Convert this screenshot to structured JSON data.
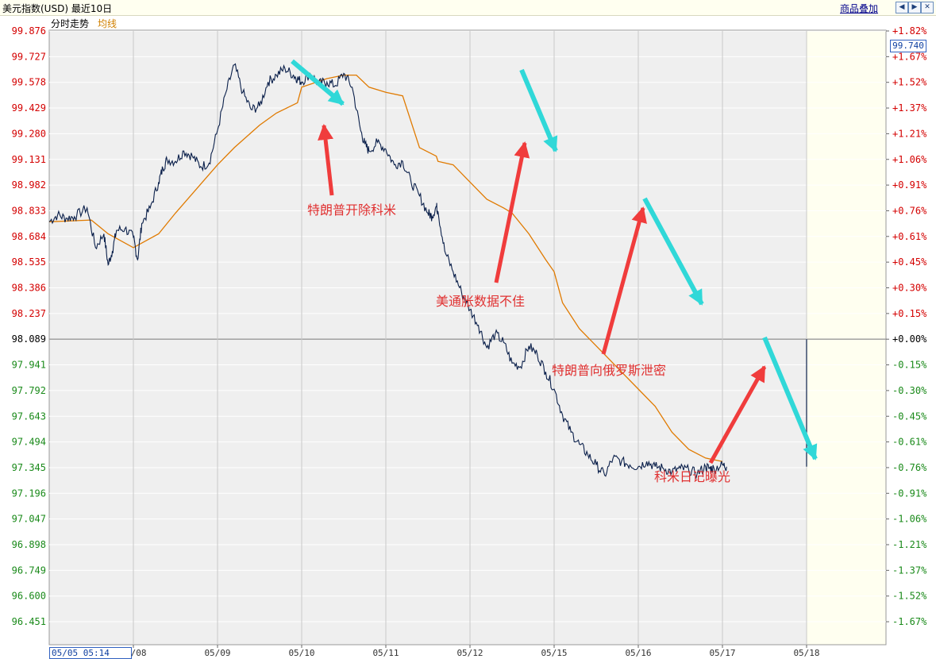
{
  "header": {
    "title": "美元指数(USD) 最近10日",
    "overlay_link": "商品叠加",
    "nav_icons": [
      "arrow-left-icon",
      "arrow-right-icon",
      "close-icon"
    ]
  },
  "tabs": {
    "line": "分时走势",
    "avg": "均线"
  },
  "current_price_label": "99.740",
  "start_label": "05/05 05:14",
  "colors": {
    "price_line": "#0a1f4a",
    "avg_line": "#e07a00",
    "annotation_text": "#e03030",
    "arrow_red": "#f03c3c",
    "arrow_cyan": "#30d8d8",
    "up_red": "#d40000",
    "down_green": "#1a8a1a",
    "plot_bg": "#efefef",
    "future_bg": "#fffff0"
  },
  "chart_data": {
    "type": "line",
    "title": "美元指数(USD) 最近10日",
    "base_value": 98.089,
    "y_ticks": [
      "99.876",
      "99.727",
      "99.578",
      "99.429",
      "99.280",
      "99.131",
      "98.982",
      "98.833",
      "98.684",
      "98.535",
      "98.386",
      "98.237",
      "98.089",
      "97.941",
      "97.792",
      "97.643",
      "97.494",
      "97.345",
      "97.196",
      "97.047",
      "96.898",
      "96.749",
      "96.600",
      "96.451"
    ],
    "pct_ticks": [
      "+1.82%",
      "+1.67%",
      "+1.52%",
      "+1.37%",
      "+1.21%",
      "+1.06%",
      "+0.91%",
      "+0.76%",
      "+0.61%",
      "+0.45%",
      "+0.30%",
      "+0.15%",
      "+0.00%",
      "-0.15%",
      "-0.30%",
      "-0.45%",
      "-0.61%",
      "-0.76%",
      "-0.91%",
      "-1.06%",
      "-1.21%",
      "-1.37%",
      "-1.52%",
      "-1.67%"
    ],
    "dates": [
      "05/08",
      "05/09",
      "05/10",
      "05/11",
      "05/12",
      "05/15",
      "05/16",
      "05/17",
      "05/18"
    ],
    "ylim": [
      96.38,
      99.95
    ],
    "x_range": [
      0,
      9
    ],
    "series": [
      {
        "name": "分时走势",
        "x": [
          0.0,
          0.1,
          0.2,
          0.3,
          0.45,
          0.55,
          0.65,
          0.7,
          0.75,
          0.8,
          0.9,
          1.0,
          1.05,
          1.1,
          1.2,
          1.3,
          1.35,
          1.4,
          1.5,
          1.6,
          1.7,
          1.8,
          1.9,
          2.0,
          2.1,
          2.2,
          2.3,
          2.4,
          2.5,
          2.6,
          2.7,
          2.8,
          2.9,
          2.95,
          3.0,
          3.1,
          3.2,
          3.3,
          3.4,
          3.5,
          3.6,
          3.7,
          3.75,
          3.8,
          3.9,
          4.0,
          4.1,
          4.2,
          4.3,
          4.4,
          4.5,
          4.55,
          4.6,
          4.62,
          4.7,
          4.8,
          4.9,
          5.0,
          5.1,
          5.2,
          5.3,
          5.4,
          5.5,
          5.6,
          5.7,
          5.8,
          5.9,
          6.0,
          6.1,
          6.2,
          6.3,
          6.4,
          6.5,
          6.6,
          6.7,
          6.8,
          6.9,
          7.0,
          7.1,
          7.2,
          7.3,
          7.4,
          7.5,
          7.6,
          7.7,
          7.8,
          7.85,
          7.9,
          8.0,
          8.05
        ],
        "y": [
          98.77,
          98.81,
          98.79,
          98.8,
          98.85,
          98.62,
          98.7,
          98.52,
          98.6,
          98.72,
          98.73,
          98.68,
          98.55,
          98.76,
          98.85,
          99.0,
          99.08,
          99.13,
          99.12,
          99.18,
          99.15,
          99.09,
          99.11,
          99.3,
          99.52,
          99.68,
          99.52,
          99.42,
          99.44,
          99.58,
          99.62,
          99.66,
          99.62,
          99.6,
          99.58,
          99.63,
          99.57,
          99.58,
          99.56,
          99.63,
          99.55,
          99.3,
          99.22,
          99.18,
          99.23,
          99.19,
          99.1,
          99.12,
          99.0,
          98.92,
          98.82,
          98.8,
          98.86,
          98.83,
          98.6,
          98.48,
          98.36,
          98.26,
          98.17,
          98.04,
          98.12,
          98.07,
          97.95,
          97.93,
          98.05,
          98.0,
          97.9,
          97.8,
          97.65,
          97.55,
          97.48,
          97.42,
          97.36,
          97.3,
          97.4,
          97.38,
          97.36,
          97.35,
          97.38,
          97.35,
          97.34,
          97.32,
          97.34,
          97.33,
          97.31,
          97.35,
          97.34,
          97.34,
          97.36,
          97.35
        ]
      },
      {
        "name": "均线",
        "x": [
          0.0,
          0.5,
          0.7,
          1.0,
          1.3,
          1.5,
          2.0,
          2.2,
          2.5,
          2.7,
          2.95,
          3.0,
          3.3,
          3.5,
          3.65,
          3.8,
          4.0,
          4.2,
          4.4,
          4.6,
          4.62,
          4.8,
          5.0,
          5.2,
          5.4,
          5.5,
          5.7,
          5.9,
          6.0,
          6.1,
          6.3,
          6.5,
          6.7,
          6.8,
          7.0,
          7.2,
          7.4,
          7.6,
          7.8,
          8.0
        ],
        "y": [
          98.77,
          98.78,
          98.7,
          98.62,
          98.7,
          98.82,
          99.1,
          99.2,
          99.33,
          99.4,
          99.46,
          99.55,
          99.6,
          99.62,
          99.62,
          99.55,
          99.52,
          99.5,
          99.2,
          99.15,
          99.12,
          99.1,
          99.0,
          98.9,
          98.85,
          98.82,
          98.7,
          98.55,
          98.48,
          98.3,
          98.15,
          98.05,
          97.95,
          97.9,
          97.8,
          97.7,
          97.55,
          97.45,
          97.4,
          97.38
        ]
      }
    ],
    "annotations": [
      {
        "text": "特朗普开除科米"
      },
      {
        "text": "美通胀数据不佳"
      },
      {
        "text": "特朗普向俄罗斯泄密"
      },
      {
        "text": "科米日记曝光"
      }
    ]
  }
}
